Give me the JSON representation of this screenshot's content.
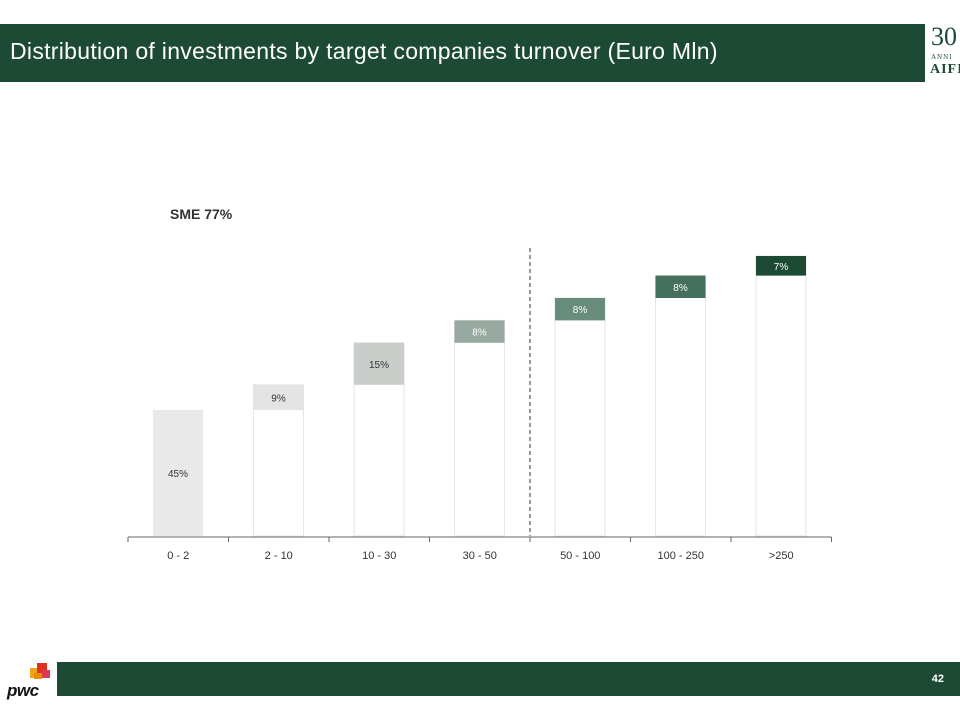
{
  "header": {
    "title": "Distribution of investments by target companies turnover (Euro Mln)",
    "color": "#1d4a34"
  },
  "logo": {
    "number": "30",
    "anni": "ANNI",
    "name": "AIFI"
  },
  "sme_label": "SME 77%",
  "footer": {
    "page_number": "42",
    "brand": "pwc",
    "color": "#1d4a34"
  },
  "chart_data": {
    "type": "bar",
    "subtype": "waterfall",
    "categories": [
      "0 - 2",
      "2 - 10",
      "10 - 30",
      "30 - 50",
      "50 - 100",
      "100 - 250",
      ">250"
    ],
    "values": [
      45,
      9,
      15,
      8,
      8,
      8,
      7
    ],
    "value_labels": [
      "45%",
      "9%",
      "15%",
      "8%",
      "8%",
      "8%",
      "7%"
    ],
    "colors": [
      "#e8e9e8",
      "#e3e4e3",
      "#c9cecb",
      "#97a9a0",
      "#688d7c",
      "#446f5c",
      "#1d4a34"
    ],
    "label_colors": [
      "#333333",
      "#333333",
      "#333333",
      "#ffffff",
      "#ffffff",
      "#ffffff",
      "#ffffff"
    ],
    "divider_after_category": "30 - 50",
    "annotation": "SME 77%",
    "grid": false,
    "legend": "none"
  }
}
